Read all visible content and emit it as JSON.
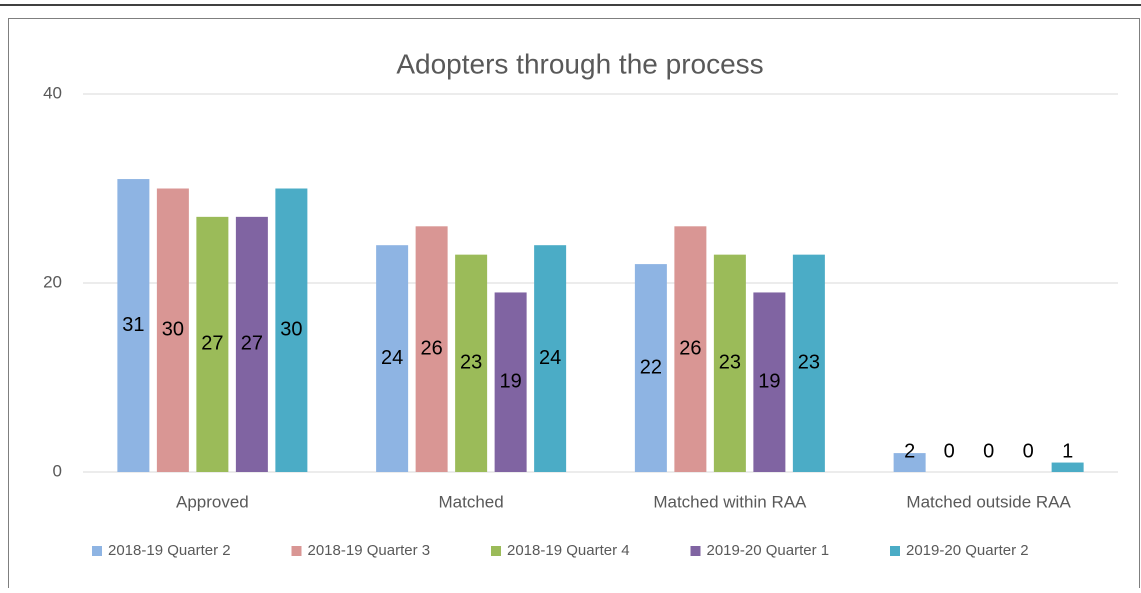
{
  "chart_data": {
    "type": "bar",
    "title": "Adopters through the process",
    "categories": [
      "Approved",
      "Matched",
      "Matched within RAA",
      "Matched outside RAA"
    ],
    "series": [
      {
        "name": "2018-19 Quarter 2",
        "color": "#8eb4e3",
        "values": [
          31,
          24,
          22,
          2
        ]
      },
      {
        "name": "2018-19 Quarter 3",
        "color": "#d99694",
        "values": [
          30,
          26,
          26,
          0
        ]
      },
      {
        "name": "2018-19 Quarter 4",
        "color": "#9bbb59",
        "values": [
          27,
          23,
          23,
          0
        ]
      },
      {
        "name": "2019-20 Quarter 1",
        "color": "#8064a2",
        "values": [
          27,
          19,
          19,
          0
        ]
      },
      {
        "name": "2019-20 Quarter 2",
        "color": "#4bacc6",
        "values": [
          30,
          24,
          23,
          1
        ]
      }
    ],
    "ylim": [
      0,
      40
    ],
    "yticks": [
      0,
      20,
      40
    ],
    "grid": true,
    "legend": "bottom"
  }
}
